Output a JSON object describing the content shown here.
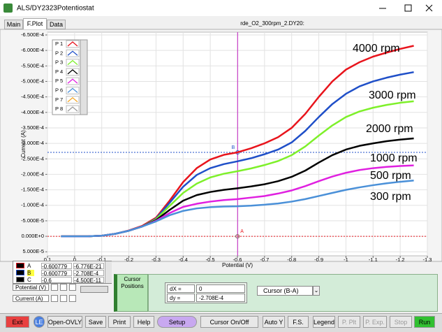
{
  "window": {
    "title": "ALS/DY2323Potentiostat",
    "tabs": [
      "Main",
      "F.Plot",
      "Data"
    ],
    "file": "rde_O2_300rpm_2.DY20:"
  },
  "chart_data": {
    "type": "line",
    "x_label": "Potential (V)",
    "y_label": "Current (A)",
    "grid": true,
    "x": [
      0.05,
      0,
      -0.05,
      -0.1,
      -0.15,
      -0.2,
      -0.25,
      -0.3,
      -0.35,
      -0.4,
      -0.45,
      -0.5,
      -0.55,
      -0.6,
      -0.65,
      -0.7,
      -0.75,
      -0.8,
      -0.85,
      -0.9,
      -0.95,
      -1,
      -1.05,
      -1.1,
      -1.15,
      -1.2,
      -1.25
    ],
    "series": [
      {
        "name": "P 1",
        "color": "#e8141c",
        "values": [
          0,
          0,
          0,
          -2e-06,
          -8e-06,
          -1.9e-05,
          -3.4e-05,
          -6e-05,
          -0.000115,
          -0.000175,
          -0.00022,
          -0.000248,
          -0.000263,
          -0.000271,
          -0.000284,
          -0.0003,
          -0.00032,
          -0.00035,
          -0.000395,
          -0.00045,
          -0.0005,
          -0.000538,
          -0.000562,
          -0.00058,
          -0.000593,
          -0.000605,
          -0.000615
        ]
      },
      {
        "name": "P 2",
        "color": "#1f4fc8",
        "values": [
          0,
          0,
          0,
          -2e-06,
          -8e-06,
          -1.8e-05,
          -3.2e-05,
          -5.7e-05,
          -0.000108,
          -0.00016,
          -0.000198,
          -0.00022,
          -0.000233,
          -0.000242,
          -0.000252,
          -0.000265,
          -0.00028,
          -0.000303,
          -0.00034,
          -0.000385,
          -0.000427,
          -0.00046,
          -0.000484,
          -0.0005,
          -0.000512,
          -0.000522,
          -0.00053
        ]
      },
      {
        "name": "P 3",
        "color": "#7ef02a",
        "values": [
          0,
          0,
          0,
          -2e-06,
          -8e-06,
          -1.8e-05,
          -3.2e-05,
          -5.5e-05,
          -9.8e-05,
          -0.00014,
          -0.00017,
          -0.00019,
          -0.000202,
          -0.00021,
          -0.000219,
          -0.00023,
          -0.000243,
          -0.000262,
          -0.00029,
          -0.000325,
          -0.000358,
          -0.000385,
          -0.000403,
          -0.000415,
          -0.000424,
          -0.000431,
          -0.000436
        ]
      },
      {
        "name": "P 4",
        "color": "#000000",
        "values": [
          0,
          0,
          0,
          -2e-06,
          -8e-06,
          -1.8e-05,
          -3.2e-05,
          -5.2e-05,
          -8.5e-05,
          -0.000115,
          -0.000133,
          -0.000143,
          -0.00015,
          -0.000155,
          -0.000161,
          -0.000168,
          -0.000178,
          -0.000192,
          -0.000212,
          -0.000238,
          -0.000262,
          -0.00028,
          -0.000292,
          -0.0003,
          -0.000307,
          -0.000312,
          -0.000316
        ]
      },
      {
        "name": "P 5",
        "color": "#e020e0",
        "values": [
          0,
          0,
          0,
          -2e-06,
          -8e-06,
          -1.8e-05,
          -3.2e-05,
          -5e-05,
          -7.5e-05,
          -9.5e-05,
          -0.000105,
          -0.000112,
          -0.000117,
          -0.00012,
          -0.000125,
          -0.00013,
          -0.000138,
          -0.000148,
          -0.000162,
          -0.000178,
          -0.000193,
          -0.000205,
          -0.000214,
          -0.00022,
          -0.000224,
          -0.000227,
          -0.000229
        ]
      },
      {
        "name": "P 6",
        "color": "#4a90d8",
        "values": [
          0,
          0,
          0,
          -2e-06,
          -8e-06,
          -1.8e-05,
          -3.2e-05,
          -4.8e-05,
          -6.8e-05,
          -8.2e-05,
          -9e-05,
          -9.4e-05,
          -9.6e-05,
          -9.7e-05,
          -9.9e-05,
          -0.000102,
          -0.000106,
          -0.000112,
          -0.00012,
          -0.00013,
          -0.00014,
          -0.00015,
          -0.000158,
          -0.000165,
          -0.000171,
          -0.000176,
          -0.00018
        ]
      },
      {
        "name": "P 7",
        "color": "#f5a623",
        "values": [
          null,
          null,
          null,
          null,
          null,
          null,
          null,
          null,
          null,
          null,
          null,
          null,
          null,
          null,
          null,
          null,
          null,
          null,
          null,
          null,
          null,
          null,
          null,
          null,
          null,
          null,
          null
        ]
      },
      {
        "name": "P 8",
        "color": "#9a9a9a",
        "values": [
          null,
          null,
          null,
          null,
          null,
          null,
          null,
          null,
          null,
          null,
          null,
          null,
          null,
          null,
          null,
          null,
          null,
          null,
          null,
          null,
          null,
          null,
          null,
          null,
          null,
          null,
          null
        ]
      }
    ],
    "xlim": [
      0.1,
      -1.3
    ],
    "xticks": [
      0.1,
      0,
      -0.1,
      -0.2,
      -0.3,
      -0.4,
      -0.5,
      -0.6,
      -0.7,
      -0.8,
      -0.9,
      -1,
      -1.1,
      -1.2,
      -1.3
    ],
    "ylim": [
      6.3e-05,
      -0.000659
    ],
    "yticks": [
      {
        "value": -0.00065,
        "label": "-6.500E-4"
      },
      {
        "value": -0.0006,
        "label": "-6.000E-4"
      },
      {
        "value": -0.00055,
        "label": "-5.500E-4"
      },
      {
        "value": -0.0005,
        "label": "-5.000E-4"
      },
      {
        "value": -0.00045,
        "label": "-4.500E-4"
      },
      {
        "value": -0.0004,
        "label": "-4.000E-4"
      },
      {
        "value": -0.00035,
        "label": "-3.500E-4"
      },
      {
        "value": -0.0003,
        "label": "-3.000E-4"
      },
      {
        "value": -0.00025,
        "label": "-2.500E-4"
      },
      {
        "value": -0.0002,
        "label": "-2.000E-4"
      },
      {
        "value": -0.00015,
        "label": "-1.500E-4"
      },
      {
        "value": -0.0001,
        "label": "-1.000E-4"
      },
      {
        "value": -5e-05,
        "label": "-5.000E-5"
      },
      {
        "value": 0,
        "label": "0.000E+0"
      },
      {
        "value": 5e-05,
        "label": "5.000E-5"
      }
    ],
    "annotations": [
      "4000 rpm",
      "3000 rpm",
      "2000 rpm",
      "1000 rpm",
      "500 rpm",
      "300 rpm"
    ],
    "cursors": [
      {
        "name": "A",
        "color": "#e8141c",
        "x": -0.600779,
        "y": {
          "value": -6.776e-21,
          "label": "-6.776E-21"
        }
      },
      {
        "name": "B",
        "color": "#1f4fc8",
        "x": -0.600779,
        "y": {
          "value": -0.0002708,
          "label": "-2.708E-4"
        }
      },
      {
        "name": "C",
        "color": "#808080",
        "x": -0.6,
        "y": {
          "value": -4.5e-11,
          "label": "-4.500E-11"
        }
      }
    ]
  },
  "cursor_panel": {
    "x_axis": "Potential (V)",
    "y_axis": "Current (A)",
    "tab": "Cursor Positions",
    "dx_label": "dX =",
    "dx": "0",
    "dy_label": "dy =",
    "dy": "-2.708E-4",
    "mode": "Cursor (B-A)"
  },
  "buttons": [
    "Exit",
    "LE",
    "Open-OVLY",
    "Save",
    "Print",
    "Help",
    "Setup",
    "Cursor On/Off",
    "Auto Y",
    "F.S.",
    "Legend",
    "P. Plt",
    "P. Exp.",
    "Stop",
    "Run"
  ]
}
